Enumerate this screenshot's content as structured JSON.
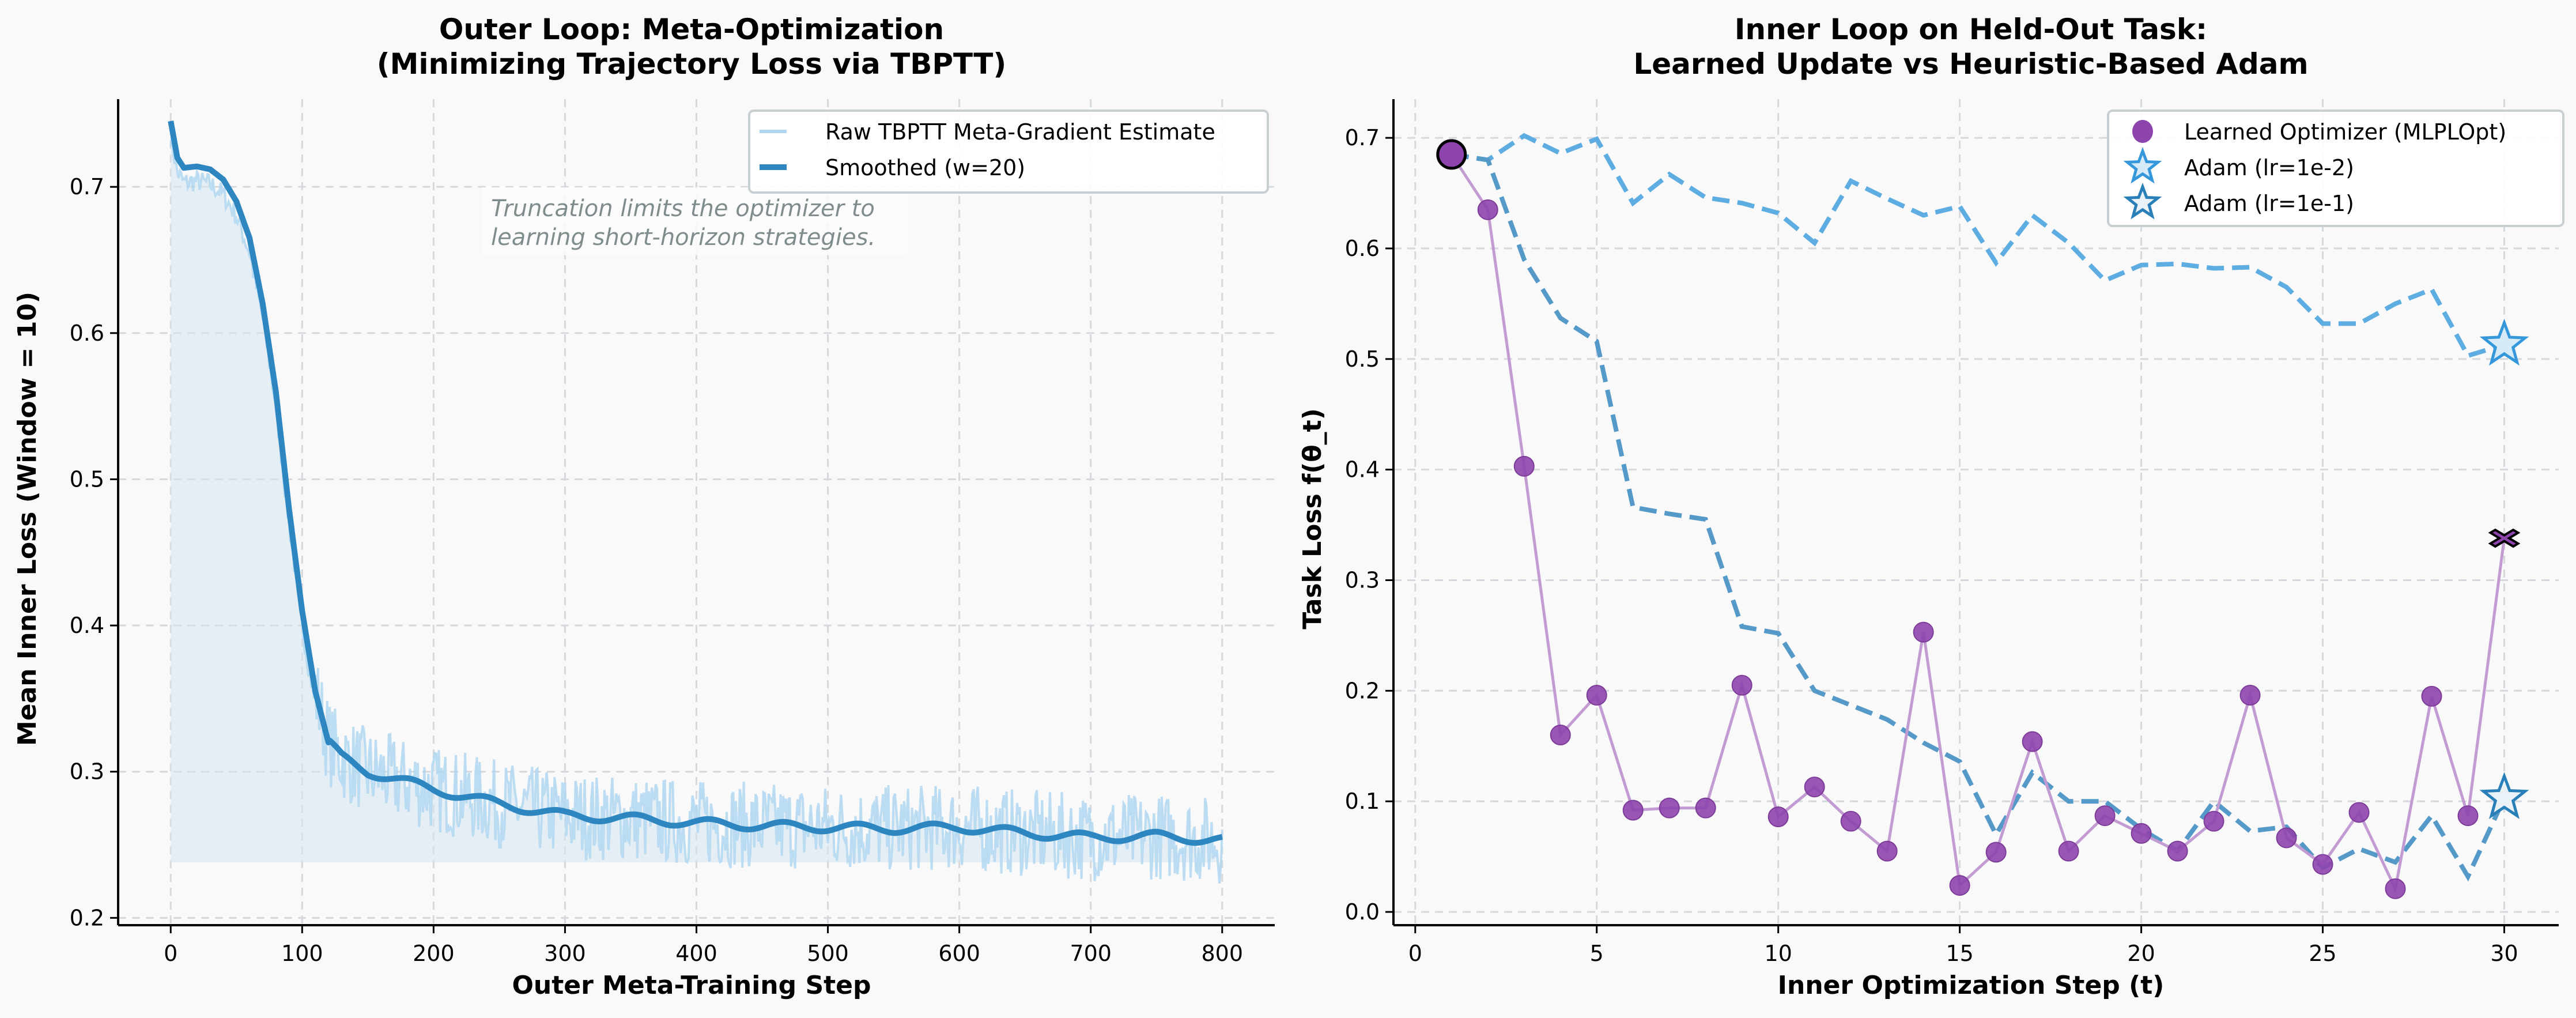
{
  "figure": {
    "background": "#f9f9f9"
  },
  "chart_data": [
    {
      "id": "outer",
      "type": "line",
      "title_line1": "Outer Loop: Meta-Optimization",
      "title_line2": "(Minimizing Trajectory Loss via TBPTT)",
      "xlabel": "Outer Meta-Training Step",
      "ylabel": "Mean Inner Loss (Window = 10)",
      "xlim": [
        -40,
        840
      ],
      "ylim": [
        0.195,
        0.76
      ],
      "xticks": [
        0,
        100,
        200,
        300,
        400,
        500,
        600,
        700,
        800
      ],
      "xtick_labels": [
        "0",
        "100",
        "200",
        "300",
        "400",
        "500",
        "600",
        "700",
        "800"
      ],
      "yticks": [
        0.2,
        0.3,
        0.4,
        0.5,
        0.6,
        0.7
      ],
      "ytick_labels": [
        "0.2",
        "0.3",
        "0.4",
        "0.5",
        "0.6",
        "0.7"
      ],
      "grid": true,
      "legend_position": "top-right",
      "fill_baseline": 0.238,
      "series": [
        {
          "name": "Raw TBPTT Meta-Gradient Estimate",
          "color": "#aed6f1",
          "style": "thin-noisy",
          "noise_amplitude": 0.03
        },
        {
          "name": "Smoothed (w=20)",
          "color": "#2e86c1",
          "style": "thick",
          "anchors_x": [
            0,
            5,
            10,
            20,
            30,
            40,
            50,
            60,
            70,
            80,
            90,
            100,
            110,
            120,
            130,
            150,
            200,
            250,
            300,
            350,
            400,
            450,
            500,
            550,
            600,
            650,
            700,
            750,
            800
          ],
          "anchors_y": [
            0.745,
            0.72,
            0.713,
            0.714,
            0.712,
            0.705,
            0.69,
            0.665,
            0.62,
            0.56,
            0.48,
            0.41,
            0.355,
            0.32,
            0.31,
            0.3,
            0.288,
            0.278,
            0.27,
            0.268,
            0.265,
            0.263,
            0.262,
            0.261,
            0.262,
            0.258,
            0.255,
            0.256,
            0.253
          ]
        }
      ],
      "annotation": {
        "line1": "Truncation limits the optimizer to",
        "line2": "learning short-horizon strategies.",
        "color": "#7f8c8d"
      }
    },
    {
      "id": "inner",
      "type": "line",
      "title_line1": "Inner Loop on Held-Out Task:",
      "title_line2": "Learned Update vs Heuristic-Based Adam",
      "xlabel": "Inner Optimization Step (t)",
      "ylabel": "Task Loss f(θ_t)",
      "xlim": [
        -0.6,
        31.5
      ],
      "ylim": [
        -0.012,
        0.735
      ],
      "xticks": [
        0,
        5,
        10,
        15,
        20,
        25,
        30
      ],
      "xtick_labels": [
        "0",
        "5",
        "10",
        "15",
        "20",
        "25",
        "30"
      ],
      "yticks": [
        0.0,
        0.1,
        0.2,
        0.3,
        0.4,
        0.5,
        0.6,
        0.7
      ],
      "ytick_labels": [
        "0.0",
        "0.1",
        "0.2",
        "0.3",
        "0.4",
        "0.5",
        "0.6",
        "0.7"
      ],
      "grid": true,
      "legend_position": "top-right",
      "x": [
        1,
        2,
        3,
        4,
        5,
        6,
        7,
        8,
        9,
        10,
        11,
        12,
        13,
        14,
        15,
        16,
        17,
        18,
        19,
        20,
        21,
        22,
        23,
        24,
        25,
        26,
        27,
        28,
        29,
        30
      ],
      "series": [
        {
          "name": "Learned Optimizer (MLPLOpt)",
          "color": "#8e44ad",
          "line_color": "#c39bd3",
          "marker": "circle",
          "start_marker": "large-circle",
          "end_marker": "x",
          "values": [
            0.685,
            0.635,
            0.403,
            0.16,
            0.196,
            0.092,
            0.094,
            0.094,
            0.205,
            0.086,
            0.113,
            0.082,
            0.055,
            0.253,
            0.024,
            0.054,
            0.154,
            0.055,
            0.087,
            0.071,
            0.055,
            0.082,
            0.196,
            0.067,
            0.043,
            0.09,
            0.021,
            0.195,
            0.087,
            0.338
          ]
        },
        {
          "name": "Adam (lr=1e-2)",
          "color": "#5dade2",
          "edge_color": "#3498db",
          "marker": "star",
          "style": "dashed",
          "values": [
            0.685,
            0.68,
            0.702,
            0.686,
            0.699,
            0.641,
            0.667,
            0.646,
            0.641,
            0.632,
            0.605,
            0.661,
            0.645,
            0.63,
            0.638,
            0.587,
            0.63,
            0.605,
            0.571,
            0.585,
            0.586,
            0.582,
            0.583,
            0.565,
            0.532,
            0.532,
            0.55,
            0.563,
            0.503,
            0.513
          ]
        },
        {
          "name": "Adam (lr=1e-1)",
          "color": "#5499c7",
          "edge_color": "#2980b9",
          "marker": "star",
          "style": "dashed",
          "values": [
            0.685,
            0.68,
            0.59,
            0.537,
            0.516,
            0.366,
            0.36,
            0.355,
            0.258,
            0.252,
            0.2,
            0.187,
            0.174,
            0.153,
            0.136,
            0.07,
            0.126,
            0.1,
            0.1,
            0.075,
            0.055,
            0.1,
            0.073,
            0.077,
            0.04,
            0.057,
            0.045,
            0.087,
            0.032,
            0.103
          ]
        }
      ]
    }
  ]
}
